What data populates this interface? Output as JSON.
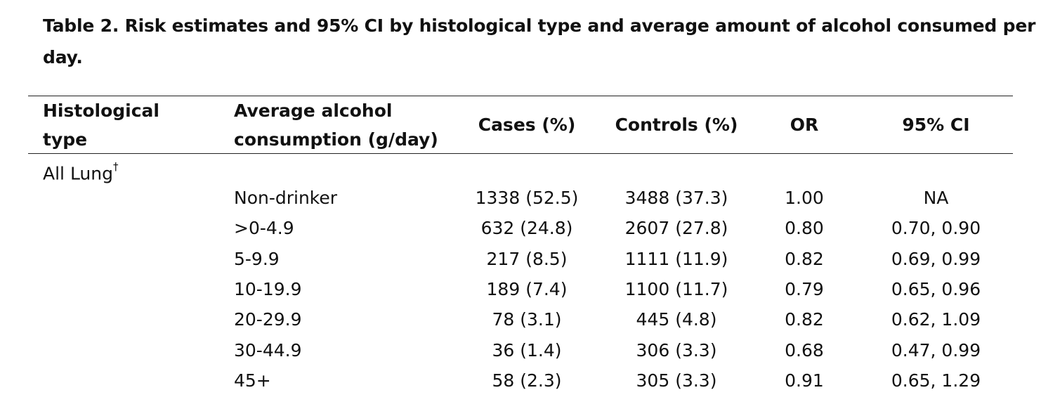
{
  "caption": {
    "line1": "Table 2. Risk estimates and 95% CI by histological type and average amount of alcohol consumed per",
    "line2": "day."
  },
  "headers": {
    "histological_type": [
      "Histological",
      "type"
    ],
    "average_alcohol": [
      "Average alcohol",
      "consumption (g/day)"
    ],
    "cases": "Cases (%)",
    "controls": "Controls (%)",
    "or": "OR",
    "ci": "95% CI"
  },
  "group": {
    "label": "All Lung",
    "footnote_mark": "†"
  },
  "rows": [
    {
      "consumption": "Non-drinker",
      "cases": "1338 (52.5)",
      "controls": "3488 (37.3)",
      "or": "1.00",
      "ci": "NA"
    },
    {
      "consumption": ">0-4.9",
      "cases": "632 (24.8)",
      "controls": "2607 (27.8)",
      "or": "0.80",
      "ci": "0.70, 0.90"
    },
    {
      "consumption": "5-9.9",
      "cases": "217 (8.5)",
      "controls": "1111 (11.9)",
      "or": "0.82",
      "ci": "0.69, 0.99"
    },
    {
      "consumption": "10-19.9",
      "cases": "189 (7.4)",
      "controls": "1100 (11.7)",
      "or": "0.79",
      "ci": "0.65, 0.96"
    },
    {
      "consumption": "20-29.9",
      "cases": "78 (3.1)",
      "controls": "445 (4.8)",
      "or": "0.82",
      "ci": "0.62, 1.09"
    },
    {
      "consumption": "30-44.9",
      "cases": "36 (1.4)",
      "controls": "306 (3.3)",
      "or": "0.68",
      "ci": "0.47, 0.99"
    },
    {
      "consumption": "45+",
      "cases": "58 (2.3)",
      "controls": "305 (3.3)",
      "or": "0.91",
      "ci": "0.65, 1.29"
    }
  ]
}
